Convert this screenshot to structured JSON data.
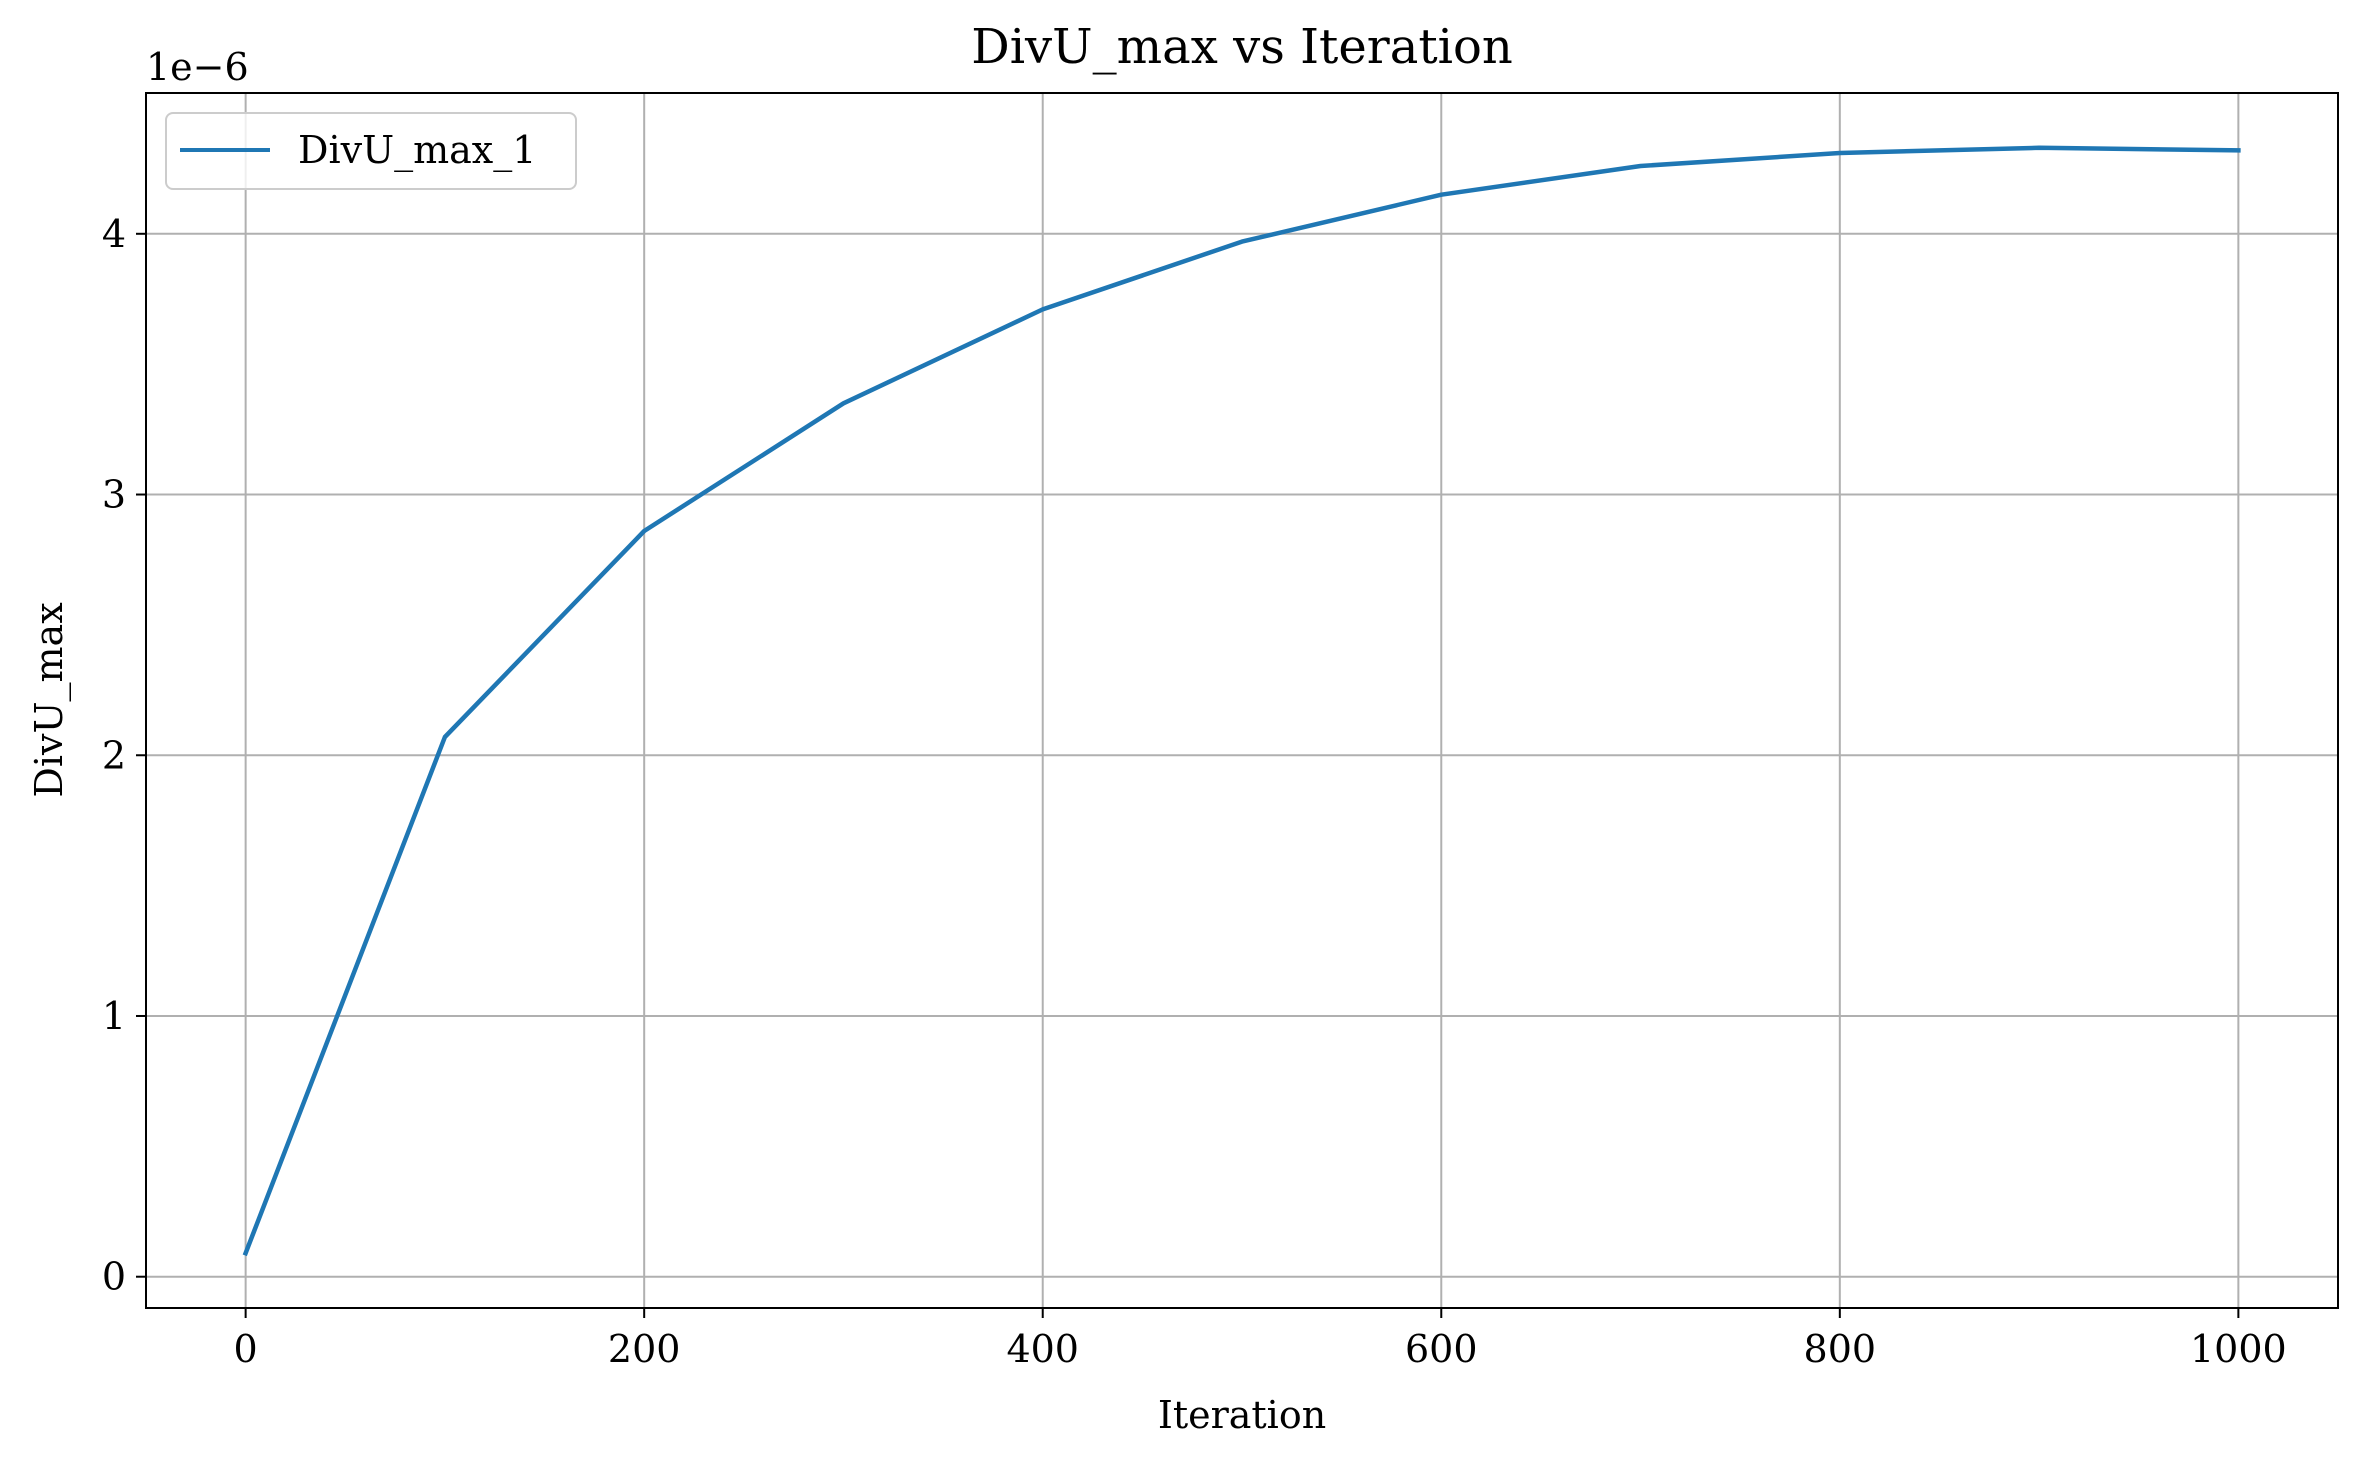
{
  "chart_data": {
    "type": "line",
    "title": "DivU_max vs Iteration",
    "xlabel": "Iteration",
    "ylabel": "DivU_max",
    "y_offset_label": "1e−6",
    "xlim": [
      -50,
      1050
    ],
    "ylim": [
      -0.12,
      4.54
    ],
    "x_ticks": [
      0,
      200,
      400,
      600,
      800,
      1000
    ],
    "x_tick_labels": [
      "0",
      "200",
      "400",
      "600",
      "800",
      "1000"
    ],
    "y_ticks": [
      0,
      1,
      2,
      3,
      4
    ],
    "y_tick_labels": [
      "0",
      "1",
      "2",
      "3",
      "4"
    ],
    "grid": true,
    "legend_position": "top-left",
    "series": [
      {
        "name": "DivU_max_1",
        "color": "#1f77b4",
        "x": [
          0,
          100,
          200,
          300,
          400,
          500,
          600,
          700,
          800,
          900,
          1000
        ],
        "y": [
          0.09,
          2.07,
          2.86,
          3.35,
          3.71,
          3.97,
          4.15,
          4.26,
          4.31,
          4.33,
          4.32
        ]
      }
    ]
  }
}
